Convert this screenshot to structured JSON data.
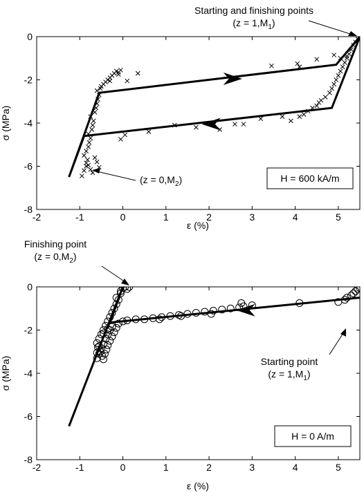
{
  "chart_data": [
    {
      "type": "scatter",
      "title": "",
      "xlabel": "ε (%)",
      "ylabel": "σ (MPa)",
      "xlim": [
        -2,
        5.5
      ],
      "ylim": [
        -8,
        0
      ],
      "xticks": [
        -2,
        -1,
        0,
        1,
        2,
        3,
        4,
        5
      ],
      "yticks": [
        -8,
        -6,
        -4,
        -2,
        0
      ],
      "grid": false,
      "box_label": "H = 600 kA/m",
      "marker": "x",
      "line_color": "#000000",
      "marker_color": "#000000",
      "annotations": [
        {
          "main": "Starting and finishing points",
          "sub_prefix": "(z = 1,M",
          "sub_index": "1",
          "sub_suffix": ")",
          "target": [
            5.45,
            -0.05
          ]
        },
        {
          "main": "(z = 0,M",
          "index": "2",
          "suffix": ")",
          "target": [
            -0.85,
            -6.45
          ]
        }
      ],
      "model_line": {
        "x": [
          5.5,
          4.85,
          -0.9,
          -1.25,
          -0.55,
          4.95,
          5.5
        ],
        "y": [
          0,
          -3.3,
          -4.6,
          -6.5,
          -2.6,
          -1.3,
          0
        ]
      },
      "arrows": [
        {
          "x": 2.55,
          "y": -1.95,
          "direction": "right"
        },
        {
          "x": 2.05,
          "y": -4.05,
          "direction": "left"
        }
      ],
      "series": [
        {
          "x": [
            -0.95,
            -0.9,
            -0.85,
            -0.82,
            -0.9,
            -0.85,
            -0.8,
            -0.78,
            -0.75,
            -0.8,
            -0.72,
            -0.7,
            -0.68,
            -0.75,
            -0.65,
            -0.62,
            -0.6,
            -0.58,
            -0.55,
            -0.6,
            -0.52,
            -0.5,
            -0.45,
            -0.4,
            -0.35,
            -0.3,
            -0.25,
            -0.2,
            -0.15,
            -0.1,
            -0.05,
            -0.1,
            -0.3,
            0.1,
            0.35,
            -0.05,
            0.05,
            0.6,
            1.2,
            1.7,
            2.25,
            2.6,
            2.8,
            3.2,
            3.7,
            3.9,
            4.1,
            4.2,
            4.3,
            4.4,
            4.5,
            4.55,
            4.6,
            4.7,
            4.8,
            4.85,
            4.9,
            4.95,
            5.0,
            5.05,
            5.1,
            5.15,
            5.2,
            5.25,
            5.3,
            5.35,
            5.4,
            5.45,
            5.5,
            3.45,
            4.05,
            4.1,
            4.5,
            4.9,
            5.05,
            5.2,
            -0.65,
            -0.6,
            -0.55,
            -0.7,
            -0.75,
            -0.8,
            -0.85
          ],
          "y": [
            -6.45,
            -6.2,
            -6.0,
            -5.7,
            -5.5,
            -5.3,
            -5.1,
            -4.9,
            -4.7,
            -4.5,
            -4.3,
            -4.1,
            -3.9,
            -3.7,
            -3.5,
            -3.3,
            -3.1,
            -2.9,
            -2.7,
            -2.5,
            -2.4,
            -2.3,
            -2.2,
            -2.1,
            -2.0,
            -1.9,
            -1.8,
            -1.7,
            -1.6,
            -1.65,
            -1.55,
            -1.75,
            -2.05,
            -2.05,
            -1.7,
            -4.75,
            -4.55,
            -4.4,
            -4.1,
            -4.2,
            -4.3,
            -4.05,
            -4.05,
            -3.8,
            -3.7,
            -3.9,
            -3.7,
            -3.6,
            -3.45,
            -3.3,
            -3.2,
            -3.05,
            -2.95,
            -2.8,
            -2.6,
            -2.4,
            -2.2,
            -2.0,
            -1.8,
            -1.6,
            -1.4,
            -1.2,
            -1.0,
            -0.8,
            -0.6,
            -0.4,
            -0.25,
            -0.1,
            -0.02,
            -1.35,
            -1.25,
            -1.4,
            -1.05,
            -0.85,
            -1.0,
            -0.9,
            -5.6,
            -5.8,
            -6.05,
            -6.3,
            -6.15,
            -5.95,
            -5.85
          ]
        }
      ]
    },
    {
      "type": "scatter",
      "title": "",
      "xlabel": "ε (%)",
      "ylabel": "σ (MPa)",
      "xlim": [
        -2,
        5.5
      ],
      "ylim": [
        -8,
        0
      ],
      "xticks": [
        -2,
        -1,
        0,
        1,
        2,
        3,
        4,
        5
      ],
      "yticks": [
        -8,
        -6,
        -4,
        -2,
        0
      ],
      "grid": false,
      "box_label": "H = 0 A/m",
      "marker": "o",
      "line_color": "#000000",
      "marker_color": "#000000",
      "annotations": [
        {
          "main": "Finishing point",
          "sub_prefix": "(z = 0,M",
          "sub_index": "2",
          "sub_suffix": ")",
          "target": [
            0.0,
            0.0
          ]
        },
        {
          "main": "Starting point",
          "sub_prefix": "(z = 1,M",
          "sub_index": "1",
          "sub_suffix": ")",
          "target": [
            5.1,
            -0.65
          ]
        }
      ],
      "model_line": {
        "x": [
          5.5,
          -0.3,
          0.0,
          -1.25
        ],
        "y": [
          -0.5,
          -1.65,
          0.0,
          -6.45
        ]
      },
      "arrows": [
        {
          "x": 2.85,
          "y": -1.08,
          "direction": "left"
        }
      ],
      "series": [
        {
          "x": [
            0.05,
            0.0,
            -0.05,
            0.1,
            0.15,
            -0.1,
            -0.15,
            -0.2,
            -0.25,
            -0.3,
            -0.35,
            -0.4,
            -0.45,
            -0.5,
            -0.55,
            -0.6,
            -0.58,
            -0.52,
            -0.48,
            -0.45,
            -0.42,
            -0.38,
            -0.35,
            -0.3,
            -0.25,
            -0.2,
            -0.15,
            -0.1,
            0.0,
            0.1,
            0.3,
            0.5,
            0.7,
            0.9,
            1.1,
            1.3,
            1.5,
            1.7,
            1.9,
            2.1,
            2.3,
            2.5,
            2.7,
            2.8,
            3.0,
            4.1,
            5.0,
            5.15,
            5.2,
            5.3,
            5.35,
            5.4,
            5.45,
            5.5,
            -0.6,
            -0.55,
            -0.5,
            -0.45,
            -0.4,
            -0.35,
            -0.3,
            -0.25,
            -0.35,
            -0.45,
            -0.55,
            -0.6,
            2.05,
            2.75,
            0.85,
            1.35,
            -0.05,
            -0.15
          ],
          "y": [
            0.0,
            -0.05,
            -0.3,
            -0.1,
            0.0,
            -0.6,
            -0.8,
            -1.0,
            -1.2,
            -1.4,
            -1.6,
            -1.8,
            -2.0,
            -2.2,
            -2.4,
            -2.6,
            -2.8,
            -3.0,
            -3.2,
            -3.35,
            -3.1,
            -2.9,
            -2.7,
            -2.5,
            -2.3,
            -2.1,
            -1.9,
            -1.7,
            -1.6,
            -1.55,
            -1.5,
            -1.5,
            -1.45,
            -1.4,
            -1.35,
            -1.3,
            -1.25,
            -1.2,
            -1.15,
            -1.1,
            -1.05,
            -1.0,
            -0.95,
            -0.9,
            -0.85,
            -0.75,
            -0.7,
            -0.6,
            -0.5,
            -0.4,
            -0.3,
            -0.2,
            -0.1,
            -0.05,
            -3.3,
            -3.1,
            -2.85,
            -2.65,
            -2.4,
            -2.2,
            -2.0,
            -1.85,
            -1.95,
            -2.15,
            -2.75,
            -3.05,
            -1.25,
            -0.75,
            -1.5,
            -1.35,
            -0.2,
            -0.5
          ]
        }
      ]
    }
  ]
}
